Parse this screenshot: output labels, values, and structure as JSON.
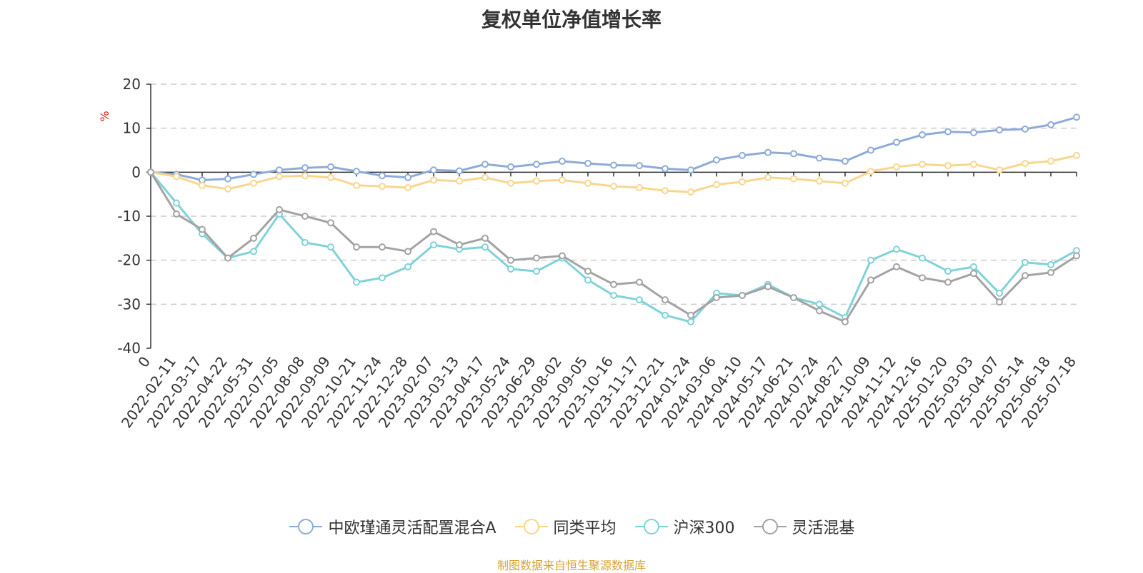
{
  "chart_data": {
    "type": "line",
    "title": "复权单位净值增长率",
    "ylabel": "%",
    "ylim": [
      -40,
      20
    ],
    "yticks": [
      20,
      10,
      0,
      -10,
      -20,
      -30,
      -40
    ],
    "grid": true,
    "legend_position": "bottom",
    "x_tick_labels": [
      "0",
      "2022-02-11",
      "2022-03-17",
      "2022-04-22",
      "2022-05-31",
      "2022-07-05",
      "2022-08-08",
      "2022-09-09",
      "2022-10-21",
      "2022-11-24",
      "2022-12-28",
      "2023-02-07",
      "2023-03-13",
      "2023-04-17",
      "2023-05-24",
      "2023-06-29",
      "2023-08-02",
      "2023-09-05",
      "2023-10-16",
      "2023-11-17",
      "2023-12-21",
      "2024-01-24",
      "2024-03-06",
      "2024-04-10",
      "2024-05-17",
      "2024-06-21",
      "2024-07-24",
      "2024-08-27",
      "2024-10-09",
      "2024-11-12",
      "2024-12-16",
      "2025-01-20",
      "2025-03-03",
      "2025-04-07",
      "2025-05-14",
      "2025-06-18",
      "2025-07-18"
    ],
    "series": [
      {
        "name": "中欧瑾通灵活配置混合A",
        "color": "#8eabd8",
        "values": [
          0,
          -0.5,
          -1.8,
          -1.5,
          -0.5,
          0.5,
          1.0,
          1.2,
          0.2,
          -0.8,
          -1.2,
          0.5,
          0.3,
          1.8,
          1.2,
          1.8,
          2.5,
          2.0,
          1.6,
          1.5,
          0.8,
          0.5,
          2.8,
          3.8,
          4.5,
          4.2,
          3.2,
          2.5,
          5.0,
          6.8,
          8.5,
          9.2,
          9.0,
          9.6,
          9.8,
          10.8,
          12.5
        ]
      },
      {
        "name": "同类平均",
        "color": "#f9d68e",
        "values": [
          0,
          -1.0,
          -3.0,
          -3.8,
          -2.5,
          -1.0,
          -0.8,
          -1.2,
          -3.0,
          -3.2,
          -3.5,
          -1.8,
          -2.0,
          -1.2,
          -2.5,
          -2.0,
          -1.8,
          -2.5,
          -3.2,
          -3.5,
          -4.2,
          -4.5,
          -2.8,
          -2.2,
          -1.2,
          -1.5,
          -2.0,
          -2.5,
          0.2,
          1.2,
          1.8,
          1.5,
          1.8,
          0.5,
          2.0,
          2.5,
          3.8
        ]
      },
      {
        "name": "沪深300",
        "color": "#80d2d9",
        "values": [
          0,
          -7.0,
          -14.0,
          -19.5,
          -18.0,
          -9.5,
          -16.0,
          -17.0,
          -25.0,
          -24.0,
          -21.5,
          -16.5,
          -17.5,
          -17.0,
          -22.0,
          -22.5,
          -19.5,
          -24.5,
          -28.0,
          -29.0,
          -32.5,
          -34.0,
          -27.5,
          -28.0,
          -25.5,
          -28.5,
          -30.0,
          -33.0,
          -20.0,
          -17.5,
          -19.5,
          -22.5,
          -21.5,
          -27.5,
          -20.5,
          -21.0,
          -17.8
        ]
      },
      {
        "name": "灵活混基",
        "color": "#a3a3a3",
        "values": [
          0,
          -9.5,
          -13.0,
          -19.5,
          -15.0,
          -8.5,
          -10.0,
          -11.5,
          -17.0,
          -17.0,
          -18.0,
          -13.5,
          -16.5,
          -15.0,
          -20.0,
          -19.5,
          -19.0,
          -22.5,
          -25.5,
          -25.0,
          -29.0,
          -32.5,
          -28.5,
          -28.0,
          -26.0,
          -28.5,
          -31.5,
          -34.0,
          -24.5,
          -21.5,
          -24.0,
          -25.0,
          -23.0,
          -29.5,
          -23.5,
          -22.8,
          -19.0
        ]
      }
    ]
  },
  "source_text": "制图数据来自恒生聚源数据库"
}
